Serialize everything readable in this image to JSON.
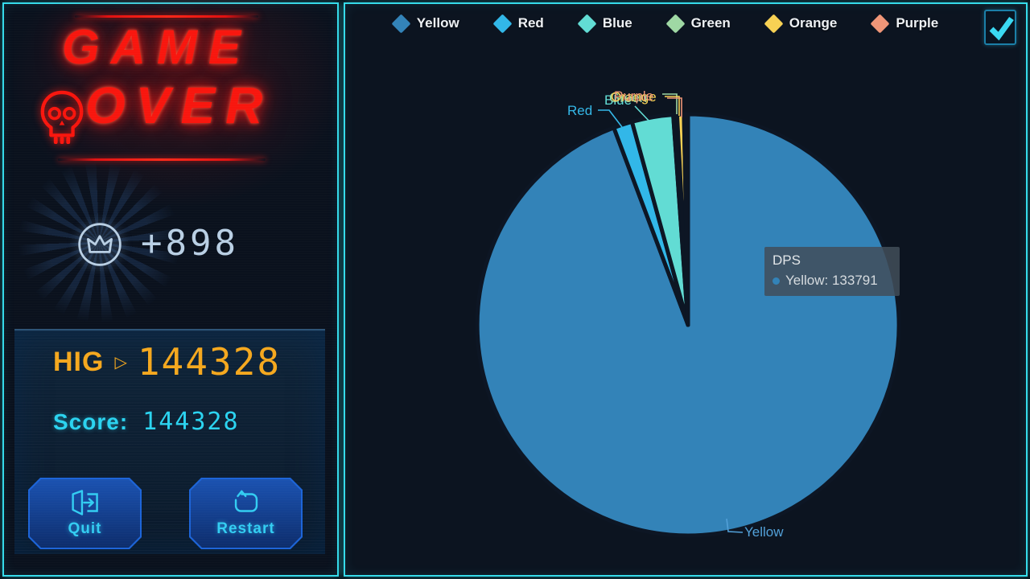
{
  "left_panel": {
    "title": {
      "line1": "GAME",
      "line2": "OVER"
    },
    "reward": {
      "value": "+898"
    },
    "highscore": {
      "label": "HIG",
      "arrow": "▷",
      "value": "144328"
    },
    "score": {
      "label": "Score:",
      "value": "144328"
    },
    "buttons": {
      "quit": "Quit",
      "restart": "Restart"
    }
  },
  "right_panel": {
    "tooltip": {
      "title": "DPS",
      "entry": "Yellow: 133791"
    },
    "checkbox": {
      "checked": true
    }
  },
  "chart_data": {
    "type": "pie",
    "title": "DPS",
    "series_name": "DPS",
    "categories": [
      "Yellow",
      "Red",
      "Blue",
      "Green",
      "Orange",
      "Purple"
    ],
    "values": [
      133791,
      2050,
      4480,
      420,
      740,
      430
    ],
    "values_note": "Only Yellow's value (133791) is displayed in the tooltip; remaining values estimated from slice arc angles",
    "colors": [
      "#3383b8",
      "#32b7e8",
      "#62dcd4",
      "#9fd8a4",
      "#f7d154",
      "#f09678"
    ],
    "label_colors": [
      "#52a0d8",
      "#35b8e8",
      "#62dcd4",
      "#9fd8a4",
      "#f7d154",
      "#f09678"
    ],
    "legend_position": "top",
    "start_angle": "12 o'clock",
    "direction": "clockwise",
    "border_color": "#0d1624"
  },
  "colors": {
    "accent_cyan": "#36dbea",
    "neon_red": "#f8160e",
    "score_orange": "#f5a81e",
    "score_cyan": "#2bd3f0",
    "button_border": "#1c64d8",
    "reward_blue": "#b9cfe4"
  }
}
